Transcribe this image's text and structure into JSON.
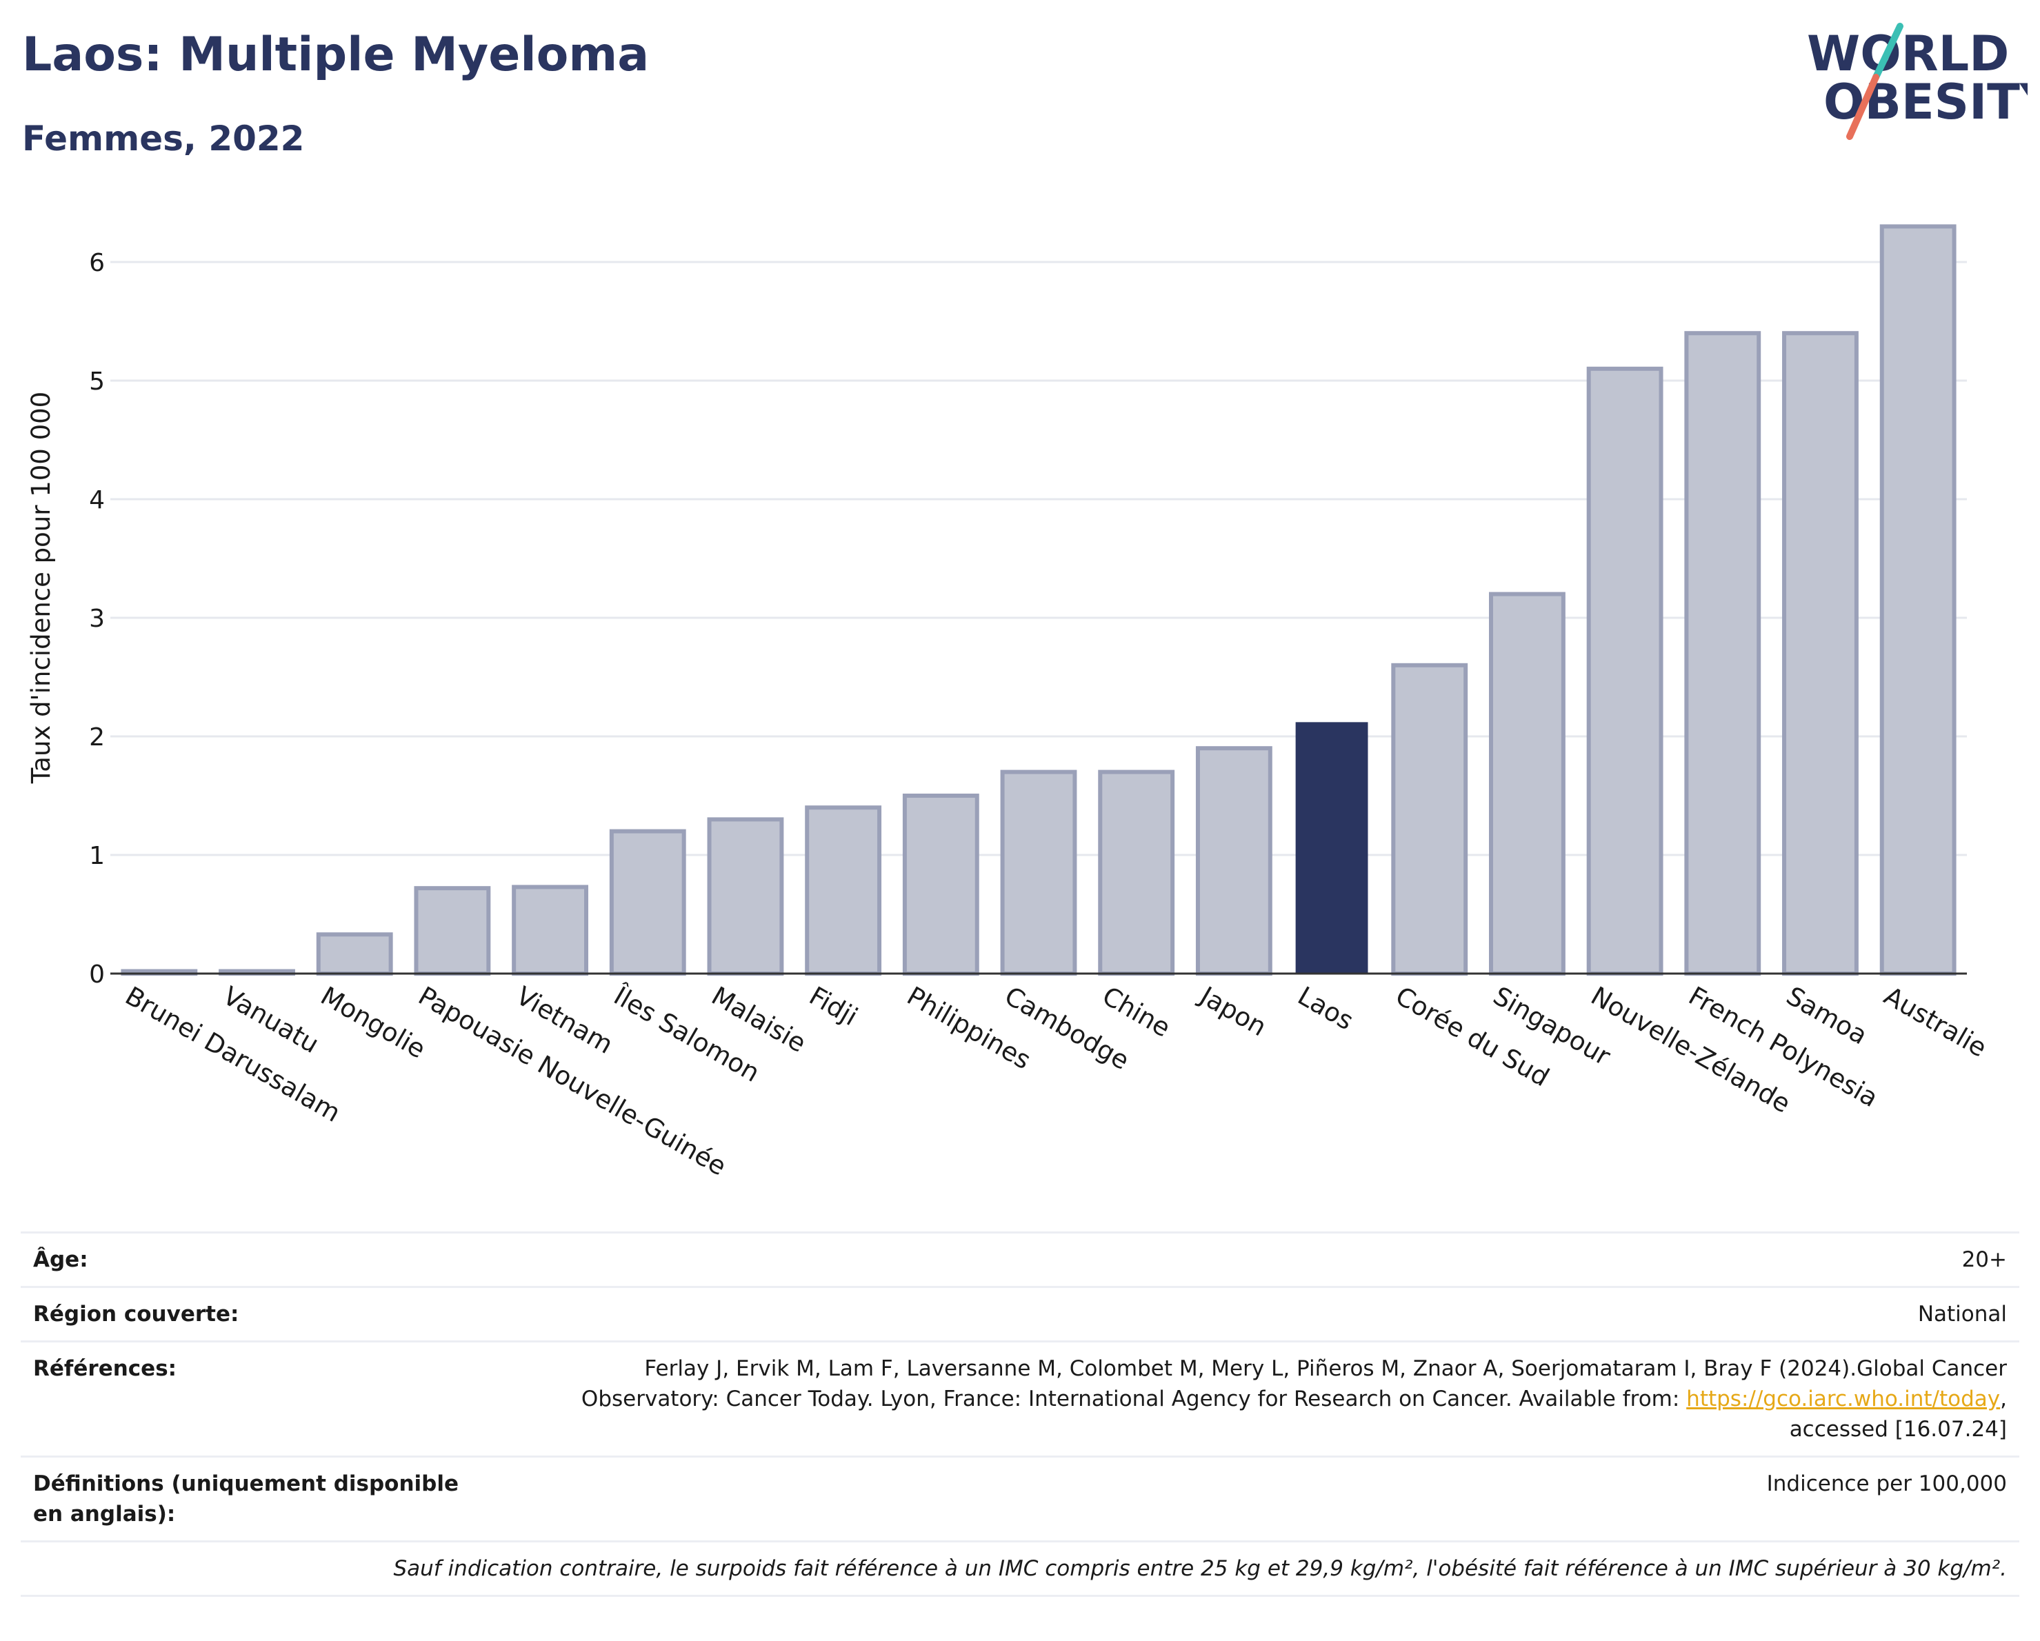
{
  "header": {
    "title": "Laos: Multiple Myeloma",
    "subtitle": "Femmes, 2022"
  },
  "logo": {
    "line1": "WORLD",
    "line2": "OBESITY",
    "colors": {
      "text": "#2a3560",
      "slash_teal": "#3bbfb4",
      "slash_coral": "#e8705a"
    }
  },
  "chart_data": {
    "type": "bar",
    "title": "Laos: Multiple Myeloma",
    "subtitle": "Femmes, 2022",
    "xlabel": "",
    "ylabel": "Taux d'incidence pour 100 000",
    "ylim": [
      0,
      6.45
    ],
    "yticks": [
      0,
      1,
      2,
      3,
      4,
      5,
      6
    ],
    "grid": true,
    "legend": "none",
    "highlight": "Laos",
    "colors": {
      "bar": "#c0c4d1",
      "bar_edge": "#9aa0b8",
      "highlight": "#2a3560",
      "grid": "#e6e8ee",
      "axis": "#333333"
    },
    "categories": [
      "Brunei Darussalam",
      "Vanuatu",
      "Mongolie",
      "Papouasie Nouvelle-Guinée",
      "Vietnam",
      "Îles Salomon",
      "Malaisie",
      "Fidji",
      "Philippines",
      "Cambodge",
      "Chine",
      "Japon",
      "Laos",
      "Corée du Sud",
      "Singapour",
      "Nouvelle-Zélande",
      "French Polynesia",
      "Samoa",
      "Australie"
    ],
    "values": [
      0.02,
      0.02,
      0.33,
      0.72,
      0.73,
      1.2,
      1.3,
      1.4,
      1.5,
      1.7,
      1.7,
      1.9,
      2.12,
      2.6,
      3.2,
      5.1,
      5.4,
      5.4,
      6.3
    ]
  },
  "meta": {
    "age_label": "Âge:",
    "age_value": "20+",
    "region_label": "Région couverte:",
    "region_value": "National",
    "ref_label": "Références:",
    "ref_text_1": "Ferlay J, Ervik M, Lam F, Laversanne M, Colombet M, Mery L, Piñeros M, Znaor A, Soerjomataram I, Bray F (2024).Global Cancer Observatory: Cancer Today. Lyon, France: International Agency for Research on Cancer. Available from: ",
    "ref_link": "https://gco.iarc.who.int/today",
    "ref_text_2": ", accessed [16.07.24]",
    "def_label": "Définitions (uniquement disponible en anglais):",
    "def_value": "Indicence per 100,000",
    "note": "Sauf indication contraire, le surpoids fait référence à un IMC compris entre 25 kg et 29,9 kg/m², l'obésité fait référence à un IMC supérieur à 30 kg/m²."
  }
}
